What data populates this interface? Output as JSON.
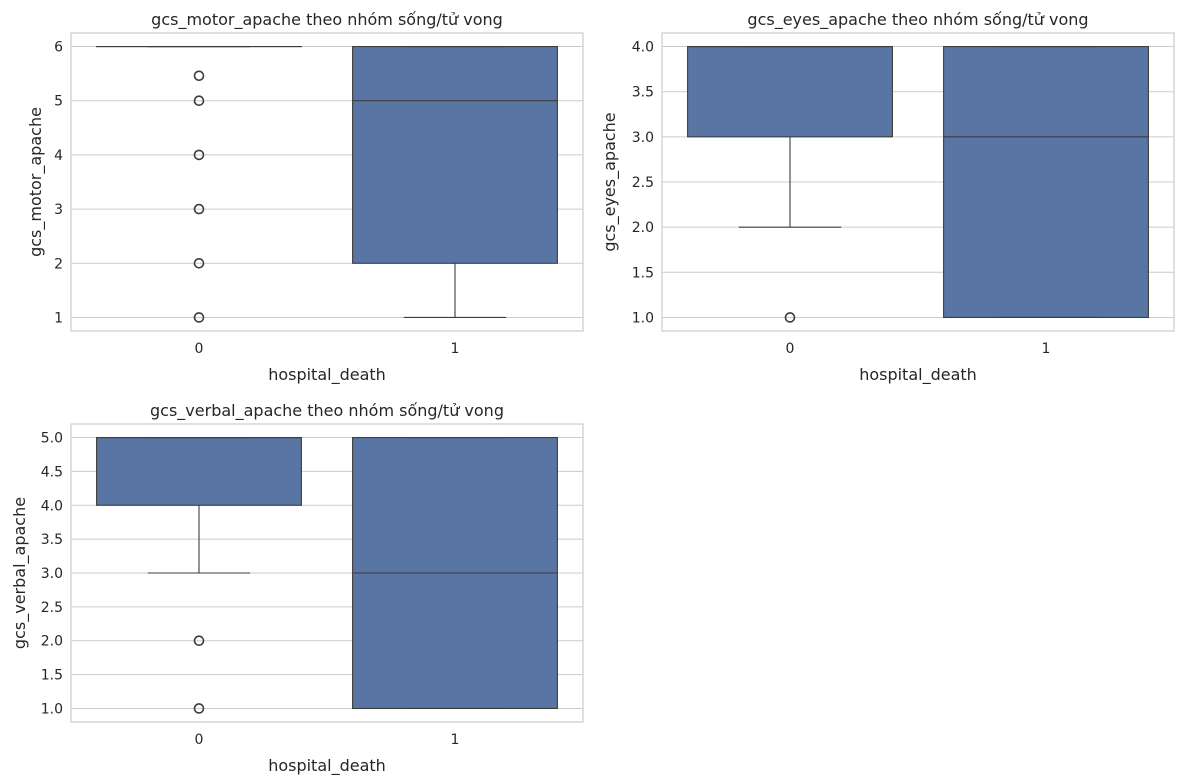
{
  "colors": {
    "box_fill": "#5875a4",
    "line": "#3d3d3d",
    "grid": "#cccccc",
    "text": "#262626"
  },
  "chart_data": [
    {
      "type": "box",
      "title": "gcs_motor_apache theo nhóm sống/tử vong",
      "xlabel": "hospital_death",
      "ylabel": "gcs_motor_apache",
      "categories": [
        "0",
        "1"
      ],
      "ylim": [
        0.75,
        6.25
      ],
      "yticks": [
        1,
        2,
        3,
        4,
        5,
        6
      ],
      "ytick_labels": [
        "1",
        "2",
        "3",
        "4",
        "5",
        "6"
      ],
      "grid": true,
      "boxes": [
        {
          "category": "0",
          "whislo": 6,
          "q1": 6,
          "med": 6,
          "q3": 6,
          "whishi": 6,
          "fliers": [
            5.46,
            5,
            4,
            3,
            2,
            1
          ]
        },
        {
          "category": "1",
          "whislo": 1,
          "q1": 2,
          "med": 5,
          "q3": 6,
          "whishi": 6,
          "fliers": []
        }
      ]
    },
    {
      "type": "box",
      "title": "gcs_eyes_apache theo nhóm sống/tử vong",
      "xlabel": "hospital_death",
      "ylabel": "gcs_eyes_apache",
      "categories": [
        "0",
        "1"
      ],
      "ylim": [
        0.85,
        4.15
      ],
      "yticks": [
        1.0,
        1.5,
        2.0,
        2.5,
        3.0,
        3.5,
        4.0
      ],
      "ytick_labels": [
        "1.0",
        "1.5",
        "2.0",
        "2.5",
        "3.0",
        "3.5",
        "4.0"
      ],
      "grid": true,
      "boxes": [
        {
          "category": "0",
          "whislo": 2,
          "q1": 3,
          "med": 4,
          "q3": 4,
          "whishi": 4,
          "fliers": [
            1
          ]
        },
        {
          "category": "1",
          "whislo": 1,
          "q1": 1,
          "med": 3,
          "q3": 4,
          "whishi": 4,
          "fliers": []
        }
      ]
    },
    {
      "type": "box",
      "title": "gcs_verbal_apache theo nhóm sống/tử vong",
      "xlabel": "hospital_death",
      "ylabel": "gcs_verbal_apache",
      "categories": [
        "0",
        "1"
      ],
      "ylim": [
        0.8,
        5.2
      ],
      "yticks": [
        1.0,
        1.5,
        2.0,
        2.5,
        3.0,
        3.5,
        4.0,
        4.5,
        5.0
      ],
      "ytick_labels": [
        "1.0",
        "1.5",
        "2.0",
        "2.5",
        "3.0",
        "3.5",
        "4.0",
        "4.5",
        "5.0"
      ],
      "grid": true,
      "boxes": [
        {
          "category": "0",
          "whislo": 3,
          "q1": 4,
          "med": 5,
          "q3": 5,
          "whishi": 5,
          "fliers": [
            2,
            1
          ]
        },
        {
          "category": "1",
          "whislo": 1,
          "q1": 1,
          "med": 3,
          "q3": 5,
          "whishi": 5,
          "fliers": []
        }
      ]
    }
  ]
}
